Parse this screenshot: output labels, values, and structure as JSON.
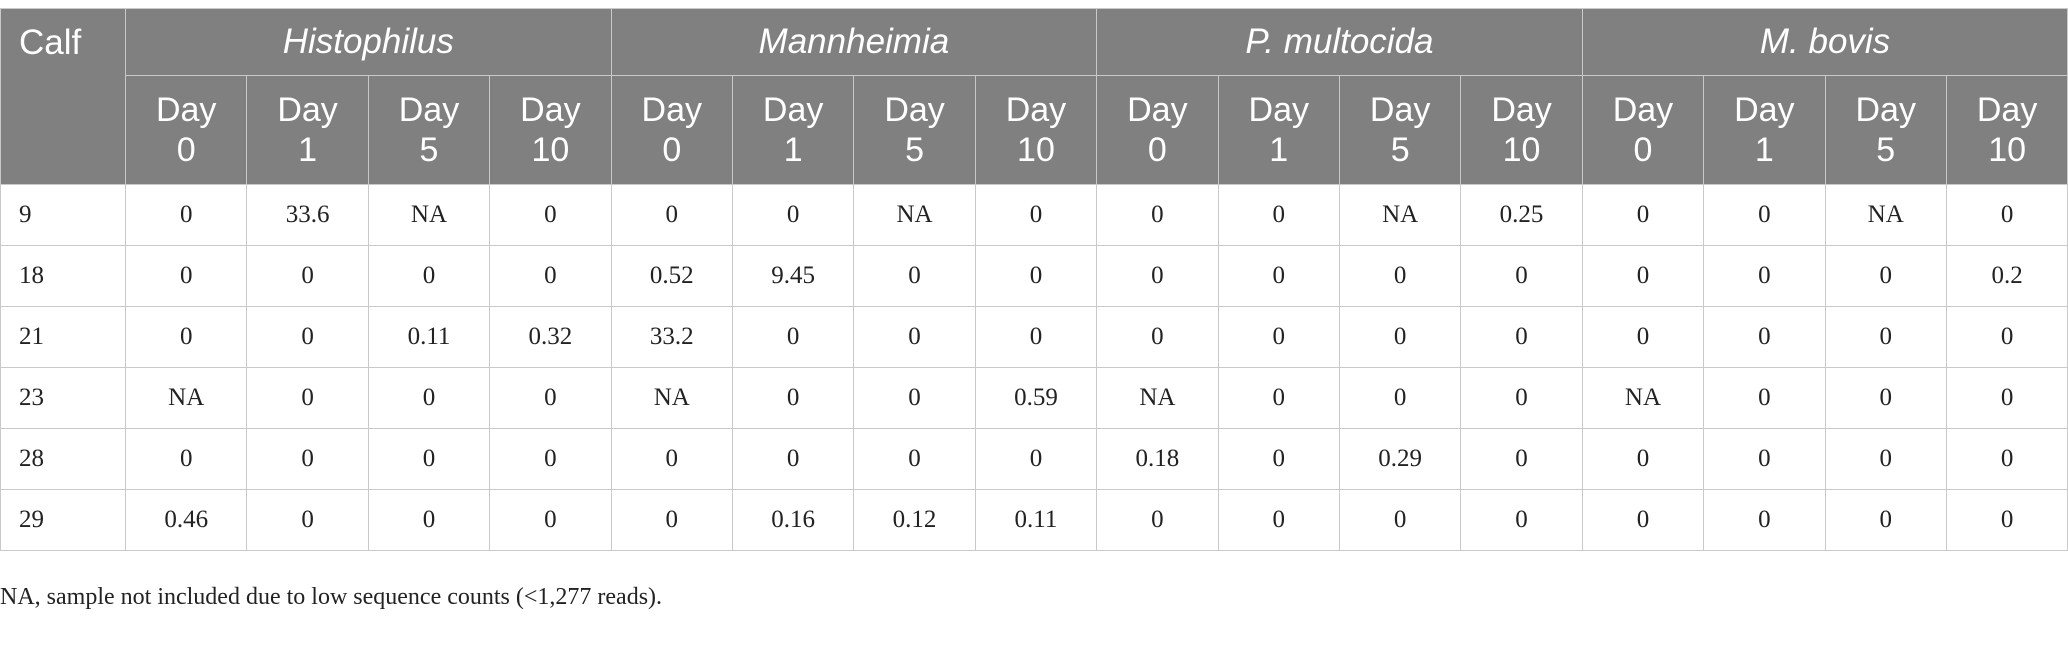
{
  "table": {
    "calf_header": "Calf",
    "groups": [
      "Histophilus",
      "Mannheimia",
      "P. multocida",
      "M. bovis"
    ],
    "day_labels": [
      {
        "line1": "Day",
        "line2": "0"
      },
      {
        "line1": "Day",
        "line2": "1"
      },
      {
        "line1": "Day",
        "line2": "5"
      },
      {
        "line1": "Day",
        "line2": "10"
      }
    ],
    "rows": [
      {
        "calf": "9",
        "values": [
          "0",
          "33.6",
          "NA",
          "0",
          "0",
          "0",
          "NA",
          "0",
          "0",
          "0",
          "NA",
          "0.25",
          "0",
          "0",
          "NA",
          "0"
        ]
      },
      {
        "calf": "18",
        "values": [
          "0",
          "0",
          "0",
          "0",
          "0.52",
          "9.45",
          "0",
          "0",
          "0",
          "0",
          "0",
          "0",
          "0",
          "0",
          "0",
          "0.2"
        ]
      },
      {
        "calf": "21",
        "values": [
          "0",
          "0",
          "0.11",
          "0.32",
          "33.2",
          "0",
          "0",
          "0",
          "0",
          "0",
          "0",
          "0",
          "0",
          "0",
          "0",
          "0"
        ]
      },
      {
        "calf": "23",
        "values": [
          "NA",
          "0",
          "0",
          "0",
          "NA",
          "0",
          "0",
          "0.59",
          "NA",
          "0",
          "0",
          "0",
          "NA",
          "0",
          "0",
          "0"
        ]
      },
      {
        "calf": "28",
        "values": [
          "0",
          "0",
          "0",
          "0",
          "0",
          "0",
          "0",
          "0",
          "0.18",
          "0",
          "0.29",
          "0",
          "0",
          "0",
          "0",
          "0"
        ]
      },
      {
        "calf": "29",
        "values": [
          "0.46",
          "0",
          "0",
          "0",
          "0",
          "0.16",
          "0.12",
          "0.11",
          "0",
          "0",
          "0",
          "0",
          "0",
          "0",
          "0",
          "0"
        ]
      }
    ]
  },
  "footnote": "NA, sample not included due to low sequence counts (<1,277 reads)."
}
